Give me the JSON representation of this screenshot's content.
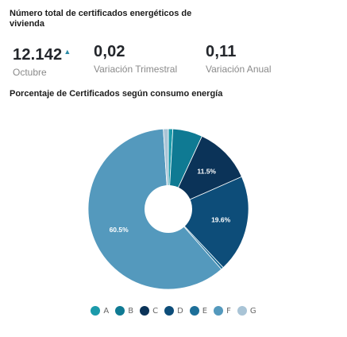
{
  "header": {
    "title": "Número total de certificados energéticos de vivienda"
  },
  "kpis": [
    {
      "value": "12.142",
      "label": "Octubre",
      "arrow": "▲"
    },
    {
      "value": "0,02",
      "label": "Variación Trimestral"
    },
    {
      "value": "0,11",
      "label": "Variación Anual"
    }
  ],
  "chart_data": {
    "type": "pie",
    "title": "Porcentaje de Certificados según consumo energía",
    "donut": true,
    "categories": [
      "A",
      "B",
      "C",
      "D",
      "E",
      "F",
      "G"
    ],
    "values": [
      0.9,
      6.0,
      11.5,
      19.6,
      0.5,
      60.5,
      1.0
    ],
    "data_labels": [
      "",
      "",
      "11.5%",
      "19.6%",
      "",
      "60.5%",
      ""
    ],
    "colors": [
      "#1b9aaa",
      "#0f7a93",
      "#0b3358",
      "#0d4d79",
      "#1d6f99",
      "#5499bd",
      "#a9c4d6"
    ],
    "legend_position": "bottom"
  }
}
